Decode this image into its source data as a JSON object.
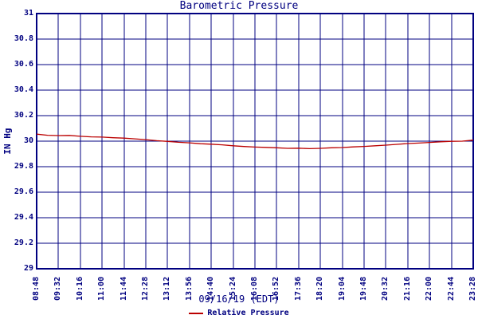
{
  "chart_data": {
    "type": "line",
    "title": "Barometric Pressure",
    "ylabel": "IN Hg",
    "xlabel": "09/16/19 (EDT)",
    "ylim": [
      29,
      31
    ],
    "grid": true,
    "legend_position": "bottom-center",
    "colors": {
      "axis_and_grid": "#000080",
      "text": "#000080",
      "line": "#bb0000",
      "background": "#ffffff"
    },
    "y_ticks": [
      31,
      30.8,
      30.6,
      30.4,
      30.2,
      30,
      29.8,
      29.6,
      29.4,
      29.2,
      29
    ],
    "x_ticks": [
      "08:48",
      "09:32",
      "10:16",
      "11:00",
      "11:44",
      "12:28",
      "13:12",
      "13:56",
      "14:40",
      "15:24",
      "16:08",
      "16:52",
      "17:36",
      "18:20",
      "19:04",
      "19:48",
      "20:32",
      "21:16",
      "22:00",
      "22:44",
      "23:28"
    ],
    "series": [
      {
        "name": "Relative Pressure",
        "color": "#bb0000",
        "sample_interval_minutes": 22,
        "values": [
          30.055,
          30.046,
          30.044,
          30.045,
          30.038,
          30.034,
          30.032,
          30.027,
          30.024,
          30.018,
          30.012,
          30.004,
          29.998,
          29.991,
          29.987,
          29.98,
          29.976,
          29.971,
          29.964,
          29.958,
          29.954,
          29.951,
          29.948,
          29.944,
          29.945,
          29.941,
          29.944,
          29.948,
          29.95,
          29.955,
          29.959,
          29.964,
          29.969,
          29.975,
          29.981,
          29.985,
          29.99,
          29.995,
          29.999,
          30.0,
          30.008
        ]
      }
    ]
  }
}
